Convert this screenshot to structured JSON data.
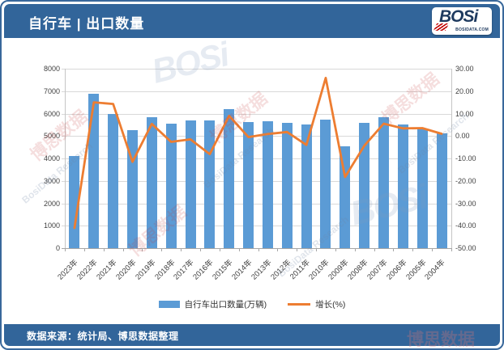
{
  "header": {
    "title": "自行车 | 出口数量",
    "logo": {
      "brand": "BOSi",
      "domain": "BOSIDATA.COM"
    }
  },
  "footer": {
    "source": "数据来源：统计局、博思数据整理"
  },
  "legend": {
    "bar_label": "自行车出口数量(万辆)",
    "line_label": "增长(%)"
  },
  "watermarks": {
    "cn": "博思数据",
    "en": "BosiData Research",
    "brand": "BOSi"
  },
  "colors": {
    "header_blue": "#32659A",
    "bar_blue": "#5B9BD5",
    "line_orange": "#ED7D31",
    "grid_gray": "#D9D9D9"
  },
  "chart_data": {
    "type": "bar",
    "combo": "bar+line",
    "title": "自行车 | 出口数量",
    "categories": [
      "2023年",
      "2022年",
      "2021年",
      "2020年",
      "2019年",
      "2018年",
      "2017年",
      "2016年",
      "2015年",
      "2014年",
      "2013年",
      "2012年",
      "2011年",
      "2010年",
      "2009年",
      "2008年",
      "2007年",
      "2006年",
      "2005年",
      "2004年"
    ],
    "series": [
      {
        "name": "自行车出口数量(万辆)",
        "type": "bar",
        "y_axis": "left",
        "color": "#5B9BD5",
        "values": [
          4100,
          6900,
          6000,
          5250,
          5850,
          5550,
          5700,
          5700,
          6200,
          5620,
          5650,
          5600,
          5500,
          5730,
          4550,
          5600,
          5850,
          5520,
          5340,
          5100
        ]
      },
      {
        "name": "增长(%)",
        "type": "line",
        "y_axis": "right",
        "color": "#ED7D31",
        "values": [
          -41.0,
          15.0,
          14.3,
          -11.5,
          5.4,
          -2.6,
          -1.5,
          -8.1,
          9.0,
          -0.5,
          0.9,
          1.8,
          -4.0,
          25.9,
          -18.3,
          -4.3,
          5.5,
          3.4,
          3.5,
          1.0
        ]
      }
    ],
    "left_axis": {
      "min": 0,
      "max": 8000,
      "step": 1000,
      "tick_labels": [
        "0",
        "1000",
        "2000",
        "3000",
        "4000",
        "5000",
        "6000",
        "7000",
        "8000"
      ]
    },
    "right_axis": {
      "min": -50,
      "max": 30,
      "step": 10,
      "tick_labels": [
        "-50.00",
        "-40.00",
        "-30.00",
        "-20.00",
        "-10.00",
        "0.00",
        "10.00",
        "20.00",
        "30.00"
      ]
    },
    "grid": "horizontal",
    "legend_position": "bottom",
    "x_label_rotation": 45
  }
}
